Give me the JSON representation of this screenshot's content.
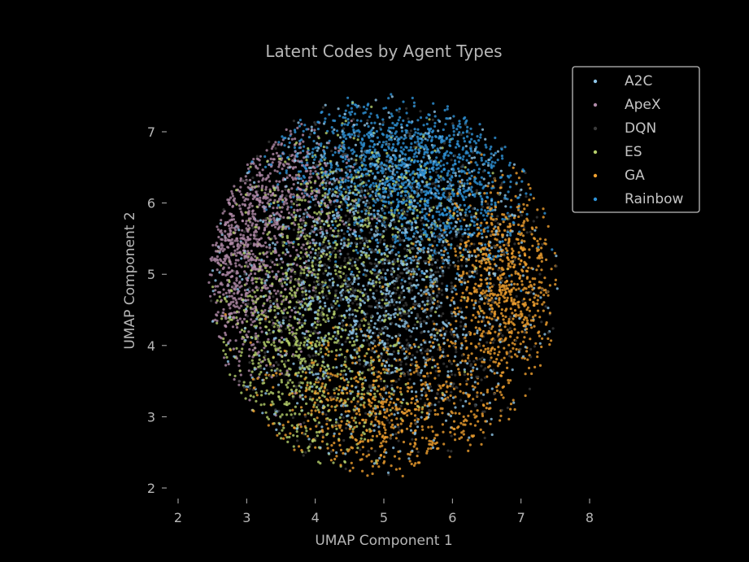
{
  "chart_data": {
    "type": "scatter",
    "title": "Latent Codes by Agent Types",
    "xlabel": "UMAP Component 1",
    "ylabel": "UMAP Component 2",
    "xlim": [
      1.9,
      8.3
    ],
    "ylim": [
      1.9,
      7.75
    ],
    "xticks": [
      "2",
      "3",
      "4",
      "5",
      "6",
      "7",
      "8"
    ],
    "yticks": [
      "2",
      "3",
      "4",
      "5",
      "6",
      "7"
    ],
    "grid": false,
    "legend_position": "top-right",
    "background": "#000000",
    "series": [
      {
        "name": "A2C",
        "color": "#8fc6e8",
        "clusters": [
          {
            "cx": 5.0,
            "cy": 5.0,
            "sx": 1.1,
            "sy": 1.2,
            "share": 1.0
          }
        ],
        "n": 1400
      },
      {
        "name": "ApeX",
        "color": "#b08aa8",
        "clusters": [
          {
            "cx": 2.9,
            "cy": 5.3,
            "sx": 0.45,
            "sy": 0.85,
            "share": 0.75
          },
          {
            "cx": 3.6,
            "cy": 6.2,
            "sx": 0.5,
            "sy": 0.5,
            "share": 0.25
          }
        ],
        "n": 1100
      },
      {
        "name": "DQN",
        "color": "#3a3a3a",
        "clusters": [
          {
            "cx": 5.0,
            "cy": 4.9,
            "sx": 1.15,
            "sy": 1.2,
            "share": 1.0
          }
        ],
        "n": 1200
      },
      {
        "name": "ES",
        "color": "#b5cf6b",
        "clusters": [
          {
            "cx": 3.9,
            "cy": 4.1,
            "sx": 0.75,
            "sy": 0.9,
            "share": 0.7
          },
          {
            "cx": 4.8,
            "cy": 5.8,
            "sx": 0.8,
            "sy": 0.6,
            "share": 0.3
          }
        ],
        "n": 1300
      },
      {
        "name": "GA",
        "color": "#f0a030",
        "clusters": [
          {
            "cx": 6.7,
            "cy": 4.9,
            "sx": 0.45,
            "sy": 0.75,
            "share": 0.5
          },
          {
            "cx": 5.0,
            "cy": 3.1,
            "sx": 0.9,
            "sy": 0.55,
            "share": 0.5
          }
        ],
        "n": 1500
      },
      {
        "name": "Rainbow",
        "color": "#2f93d8",
        "clusters": [
          {
            "cx": 5.1,
            "cy": 6.6,
            "sx": 0.9,
            "sy": 0.45,
            "share": 0.7
          },
          {
            "cx": 5.8,
            "cy": 5.9,
            "sx": 0.7,
            "sy": 0.45,
            "share": 0.3
          }
        ],
        "n": 1400
      }
    ],
    "cloud": {
      "cx": 5.0,
      "cy": 4.85,
      "rx": 2.55,
      "ry": 2.7
    }
  }
}
